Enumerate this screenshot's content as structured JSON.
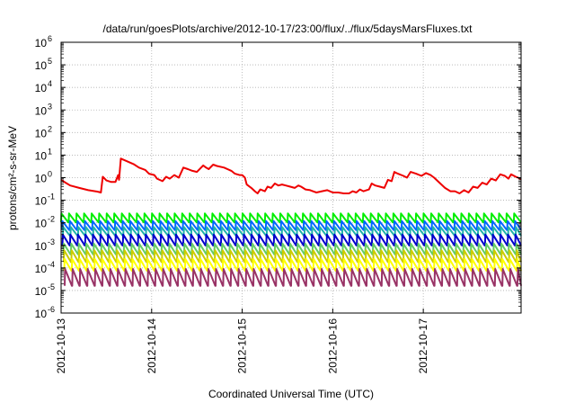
{
  "chart_data": {
    "type": "line",
    "title": "/data/run/goesPlots/archive/2012-10-17/23:00/flux/../flux/5daysMarsFluxes.txt",
    "xlabel": "Coordinated Universal Time (UTC)",
    "ylabel": "protons/cm²-s-sr-MeV",
    "x_ticks": [
      "2012-10-13",
      "2012-10-14",
      "2012-10-15",
      "2012-10-16",
      "2012-10-17"
    ],
    "xlim_days": [
      0,
      5.08
    ],
    "yscale": "log",
    "ylim": [
      1e-06,
      1000000.0
    ],
    "y_tick_exponents": [
      -6,
      -5,
      -4,
      -3,
      -2,
      -1,
      0,
      1,
      2,
      3,
      4,
      5,
      6
    ],
    "y_tick_base": "10",
    "grid": true,
    "series": [
      {
        "color": "#ee0000",
        "points": [
          [
            0.0,
            0.8
          ],
          [
            0.05,
            0.6
          ],
          [
            0.1,
            0.45
          ],
          [
            0.2,
            0.35
          ],
          [
            0.3,
            0.28
          ],
          [
            0.4,
            0.24
          ],
          [
            0.44,
            0.22
          ],
          [
            0.46,
            1.1
          ],
          [
            0.5,
            0.75
          ],
          [
            0.55,
            0.65
          ],
          [
            0.6,
            0.65
          ],
          [
            0.63,
            1.3
          ],
          [
            0.64,
            0.8
          ],
          [
            0.66,
            7.0
          ],
          [
            0.72,
            5.5
          ],
          [
            0.8,
            4.0
          ],
          [
            0.86,
            2.8
          ],
          [
            0.93,
            2.2
          ],
          [
            0.97,
            1.5
          ],
          [
            1.03,
            1.3
          ],
          [
            1.06,
            0.9
          ],
          [
            1.12,
            0.7
          ],
          [
            1.16,
            1.1
          ],
          [
            1.2,
            0.9
          ],
          [
            1.25,
            1.3
          ],
          [
            1.3,
            1.0
          ],
          [
            1.35,
            2.8
          ],
          [
            1.4,
            2.4
          ],
          [
            1.45,
            2.0
          ],
          [
            1.5,
            1.8
          ],
          [
            1.57,
            3.5
          ],
          [
            1.6,
            2.8
          ],
          [
            1.63,
            2.4
          ],
          [
            1.68,
            3.8
          ],
          [
            1.72,
            3.3
          ],
          [
            1.8,
            2.8
          ],
          [
            1.88,
            2.0
          ],
          [
            1.92,
            1.5
          ],
          [
            1.97,
            1.3
          ],
          [
            2.0,
            1.3
          ],
          [
            2.03,
            1.0
          ],
          [
            2.05,
            0.5
          ],
          [
            2.1,
            0.35
          ],
          [
            2.14,
            0.25
          ],
          [
            2.17,
            0.2
          ],
          [
            2.2,
            0.3
          ],
          [
            2.25,
            0.25
          ],
          [
            2.28,
            0.4
          ],
          [
            2.32,
            0.35
          ],
          [
            2.36,
            0.55
          ],
          [
            2.4,
            0.45
          ],
          [
            2.44,
            0.5
          ],
          [
            2.48,
            0.45
          ],
          [
            2.53,
            0.4
          ],
          [
            2.58,
            0.35
          ],
          [
            2.62,
            0.45
          ],
          [
            2.65,
            0.4
          ],
          [
            2.7,
            0.3
          ],
          [
            2.75,
            0.28
          ],
          [
            2.78,
            0.25
          ],
          [
            2.82,
            0.22
          ],
          [
            2.88,
            0.25
          ],
          [
            2.94,
            0.28
          ],
          [
            3.0,
            0.22
          ],
          [
            3.06,
            0.22
          ],
          [
            3.12,
            0.2
          ],
          [
            3.18,
            0.2
          ],
          [
            3.22,
            0.25
          ],
          [
            3.26,
            0.22
          ],
          [
            3.3,
            0.3
          ],
          [
            3.34,
            0.25
          ],
          [
            3.4,
            0.3
          ],
          [
            3.43,
            0.55
          ],
          [
            3.47,
            0.45
          ],
          [
            3.52,
            0.4
          ],
          [
            3.57,
            0.35
          ],
          [
            3.61,
            0.8
          ],
          [
            3.65,
            0.7
          ],
          [
            3.68,
            1.8
          ],
          [
            3.72,
            1.5
          ],
          [
            3.78,
            1.2
          ],
          [
            3.82,
            1.0
          ],
          [
            3.86,
            1.8
          ],
          [
            3.92,
            1.5
          ],
          [
            3.98,
            1.2
          ],
          [
            4.03,
            1.6
          ],
          [
            4.08,
            1.3
          ],
          [
            4.12,
            1.0
          ],
          [
            4.16,
            0.7
          ],
          [
            4.2,
            0.5
          ],
          [
            4.24,
            0.35
          ],
          [
            4.3,
            0.25
          ],
          [
            4.35,
            0.25
          ],
          [
            4.4,
            0.2
          ],
          [
            4.45,
            0.28
          ],
          [
            4.5,
            0.22
          ],
          [
            4.55,
            0.4
          ],
          [
            4.6,
            0.35
          ],
          [
            4.65,
            0.6
          ],
          [
            4.7,
            0.5
          ],
          [
            4.75,
            0.9
          ],
          [
            4.8,
            0.75
          ],
          [
            4.85,
            1.4
          ],
          [
            4.9,
            1.2
          ],
          [
            4.94,
            0.9
          ],
          [
            4.97,
            1.4
          ],
          [
            5.02,
            1.1
          ],
          [
            5.06,
            0.95
          ],
          [
            5.08,
            0.85
          ]
        ]
      },
      {
        "color": "#00ee00",
        "sawtooth": {
          "start": 0,
          "period": 0.08333,
          "peak": 0.026,
          "decay_factor": 0.4,
          "end": 5.08
        }
      },
      {
        "color": "#0066ff",
        "sawtooth": {
          "start": 0.01,
          "period": 0.08333,
          "peak": 0.012,
          "decay_factor": 0.4,
          "end": 5.08
        }
      },
      {
        "color": "#20b2aa",
        "sawtooth": {
          "start": 0.02,
          "period": 0.08333,
          "peak": 0.0065,
          "decay_factor": 0.4,
          "end": 5.08
        }
      },
      {
        "color": "#0000cc",
        "sawtooth": {
          "start": 0.015,
          "period": 0.08333,
          "peak": 0.003,
          "decay_factor": 0.33,
          "end": 5.08
        }
      },
      {
        "color": "#66cc66",
        "sawtooth": {
          "start": 0.025,
          "period": 0.08333,
          "peak": 0.0012,
          "decay_factor": 0.33,
          "end": 5.08
        }
      },
      {
        "color": "#cccc00",
        "sawtooth": {
          "start": 0.03,
          "period": 0.08333,
          "peak": 0.0006,
          "decay_factor": 0.3,
          "end": 5.08
        }
      },
      {
        "color": "#ffff00",
        "sawtooth": {
          "start": 0.035,
          "period": 0.08333,
          "peak": 0.00025,
          "decay_factor": 0.3,
          "end": 5.08
        }
      },
      {
        "color": "#993366",
        "sawtooth": {
          "start": 0.04,
          "period": 0.08333,
          "peak": 9e-05,
          "decay_factor": 0.18,
          "end": 5.08
        }
      }
    ]
  }
}
